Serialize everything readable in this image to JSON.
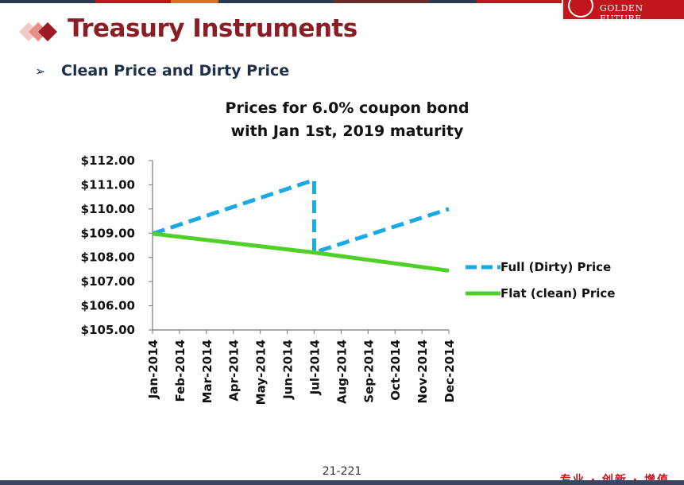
{
  "header": {
    "brand_text": "GOLDEN FUTURE",
    "brand_color": "#c0161c",
    "title": "Treasury Instruments",
    "title_color": "#8b1e24"
  },
  "slide": {
    "bullet": "Clean Price and Dirty Price",
    "page_number": "21-221",
    "footer_slogan": "专业 · 创新 · 增值"
  },
  "chart_data": {
    "type": "line",
    "title_lines": [
      "Prices for 6.0% coupon  bond",
      "with Jan 1st, 2019 maturity"
    ],
    "categories": [
      "Jan-2014",
      "Feb-2014",
      "Mar-2014",
      "Apr-2014",
      "May-2014",
      "Jun-2014",
      "Jul-2014",
      "Aug-2014",
      "Sep-2014",
      "Oct-2014",
      "Nov-2014",
      "Dec-2014"
    ],
    "y_ticks": [
      "$112.00",
      "$111.00",
      "$110.00",
      "$109.00",
      "$108.00",
      "$107.00",
      "$106.00",
      "$105.00"
    ],
    "ylim": [
      105,
      112
    ],
    "legend_position": "right",
    "series": [
      {
        "name": "Full (Dirty) Price",
        "color": "#1aa9e8",
        "dash": true,
        "points": [
          {
            "x": "Jan-2014",
            "y": 108.98
          },
          {
            "x": "Jul-2014",
            "y": 111.2
          },
          {
            "x": "Jul-2014",
            "y": 108.2
          },
          {
            "x": "Dec-2014",
            "y": 110.0
          }
        ]
      },
      {
        "name": "Flat (clean) Price",
        "color": "#4fd12a",
        "dash": false,
        "points": [
          {
            "x": "Jan-2014",
            "y": 108.98
          },
          {
            "x": "Jul-2014",
            "y": 108.2
          },
          {
            "x": "Dec-2014",
            "y": 107.45
          }
        ]
      }
    ]
  }
}
